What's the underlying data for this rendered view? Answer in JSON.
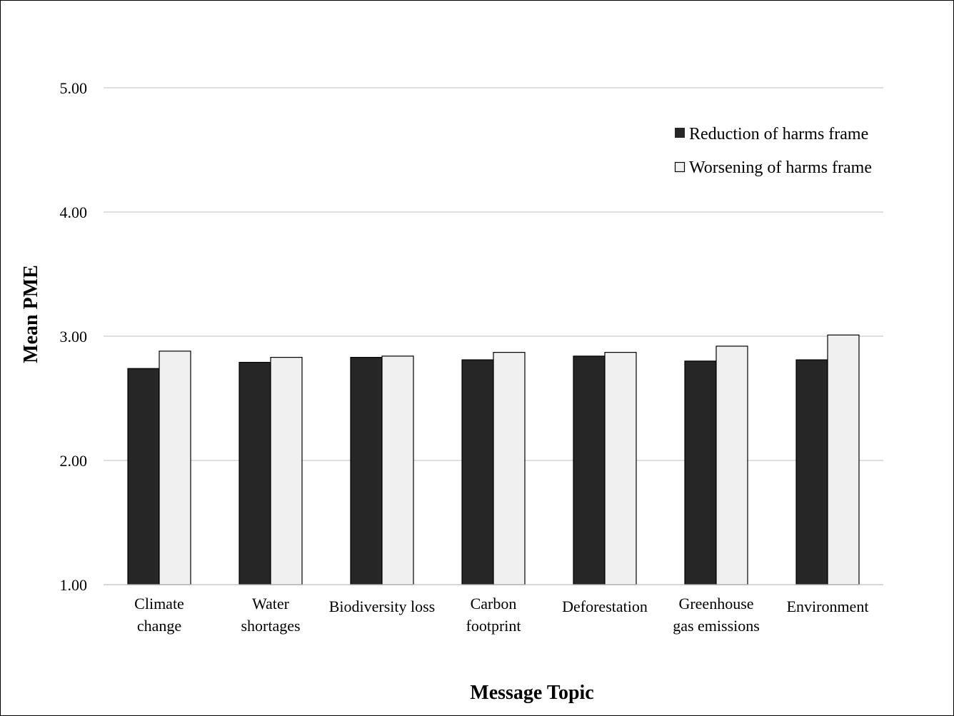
{
  "chart_data": {
    "type": "bar",
    "title": "",
    "xlabel": "Message Topic",
    "ylabel": "Mean PME",
    "ylim": [
      1.0,
      5.0
    ],
    "yticks": [
      "1.00",
      "2.00",
      "3.00",
      "4.00",
      "5.00"
    ],
    "grid": true,
    "legend_position": "top-right",
    "categories": [
      [
        "Climate",
        "change"
      ],
      [
        "Water",
        "shortages"
      ],
      [
        "Biodiversity loss"
      ],
      [
        "Carbon",
        "footprint"
      ],
      [
        "Deforestation"
      ],
      [
        "Greenhouse",
        "gas emissions"
      ],
      [
        "Environment"
      ]
    ],
    "series": [
      {
        "name": "Reduction of harms frame",
        "color": "#262626",
        "values": [
          2.74,
          2.79,
          2.83,
          2.81,
          2.84,
          2.8,
          2.81
        ]
      },
      {
        "name": "Worsening of harms frame",
        "color": "#f0f0f0",
        "values": [
          2.88,
          2.83,
          2.84,
          2.87,
          2.87,
          2.92,
          3.01
        ]
      }
    ]
  }
}
